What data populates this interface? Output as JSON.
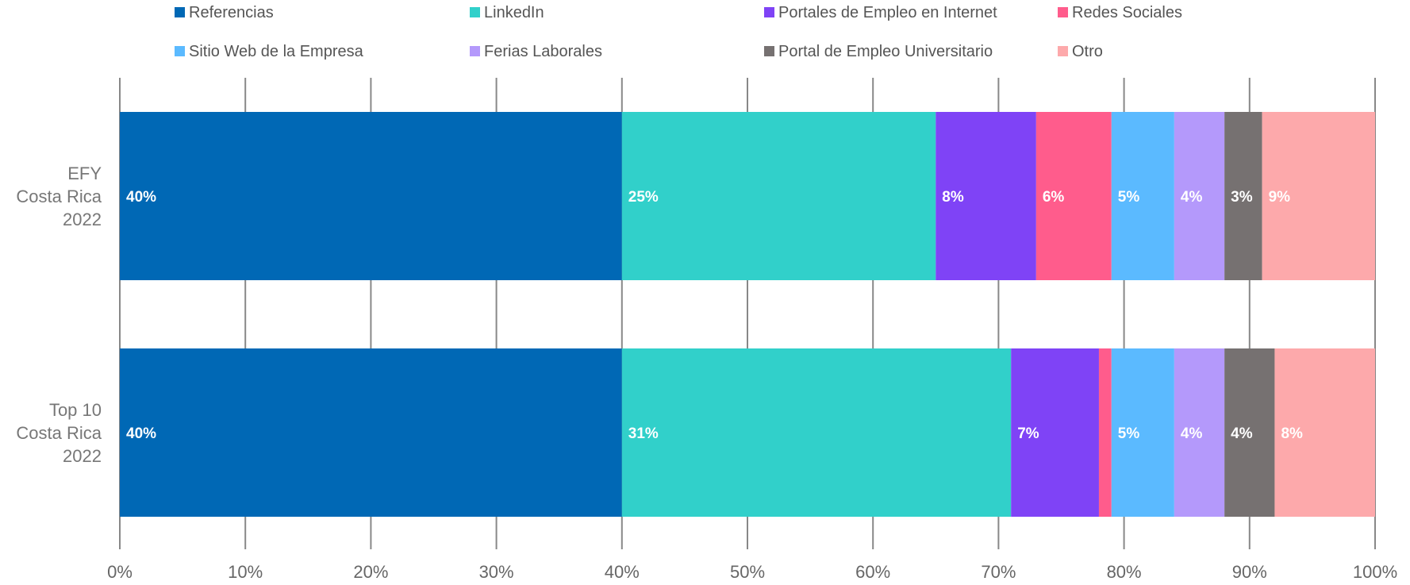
{
  "chart_data": {
    "type": "bar",
    "orientation": "horizontal",
    "stacked": true,
    "legend_position": "top",
    "grid": true,
    "xlim": [
      0,
      100
    ],
    "x_ticks": [
      "0%",
      "10%",
      "20%",
      "30%",
      "40%",
      "50%",
      "60%",
      "70%",
      "80%",
      "90%",
      "100%"
    ],
    "categories": [
      [
        "EFY",
        "Costa Rica",
        "2022"
      ],
      [
        "Top 10",
        "Costa Rica",
        "2022"
      ]
    ],
    "series": [
      {
        "name": "Referencias",
        "color": "#0068b5",
        "values": [
          40,
          40
        ],
        "labels": [
          "40%",
          "40%"
        ]
      },
      {
        "name": "LinkedIn",
        "color": "#31d0ca",
        "values": [
          25,
          31
        ],
        "labels": [
          "25%",
          "31%"
        ]
      },
      {
        "name": "Portales de Empleo en Internet",
        "color": "#7f43f6",
        "values": [
          8,
          7
        ],
        "labels": [
          "8%",
          "7%"
        ]
      },
      {
        "name": "Redes Sociales",
        "color": "#ff5c8c",
        "values": [
          6,
          1
        ],
        "labels": [
          "6%",
          ""
        ]
      },
      {
        "name": "Sitio Web de la Empresa",
        "color": "#5bbaff",
        "values": [
          5,
          5
        ],
        "labels": [
          "5%",
          "5%"
        ]
      },
      {
        "name": "Ferias Laborales",
        "color": "#b499fb",
        "values": [
          4,
          4
        ],
        "labels": [
          "4%",
          "4%"
        ]
      },
      {
        "name": "Portal de Empleo Universitario",
        "color": "#767171",
        "values": [
          3,
          4
        ],
        "labels": [
          "3%",
          "4%"
        ]
      },
      {
        "name": "Otro",
        "color": "#fda9ab",
        "values": [
          9,
          8
        ],
        "labels": [
          "9%",
          "8%"
        ]
      }
    ]
  }
}
